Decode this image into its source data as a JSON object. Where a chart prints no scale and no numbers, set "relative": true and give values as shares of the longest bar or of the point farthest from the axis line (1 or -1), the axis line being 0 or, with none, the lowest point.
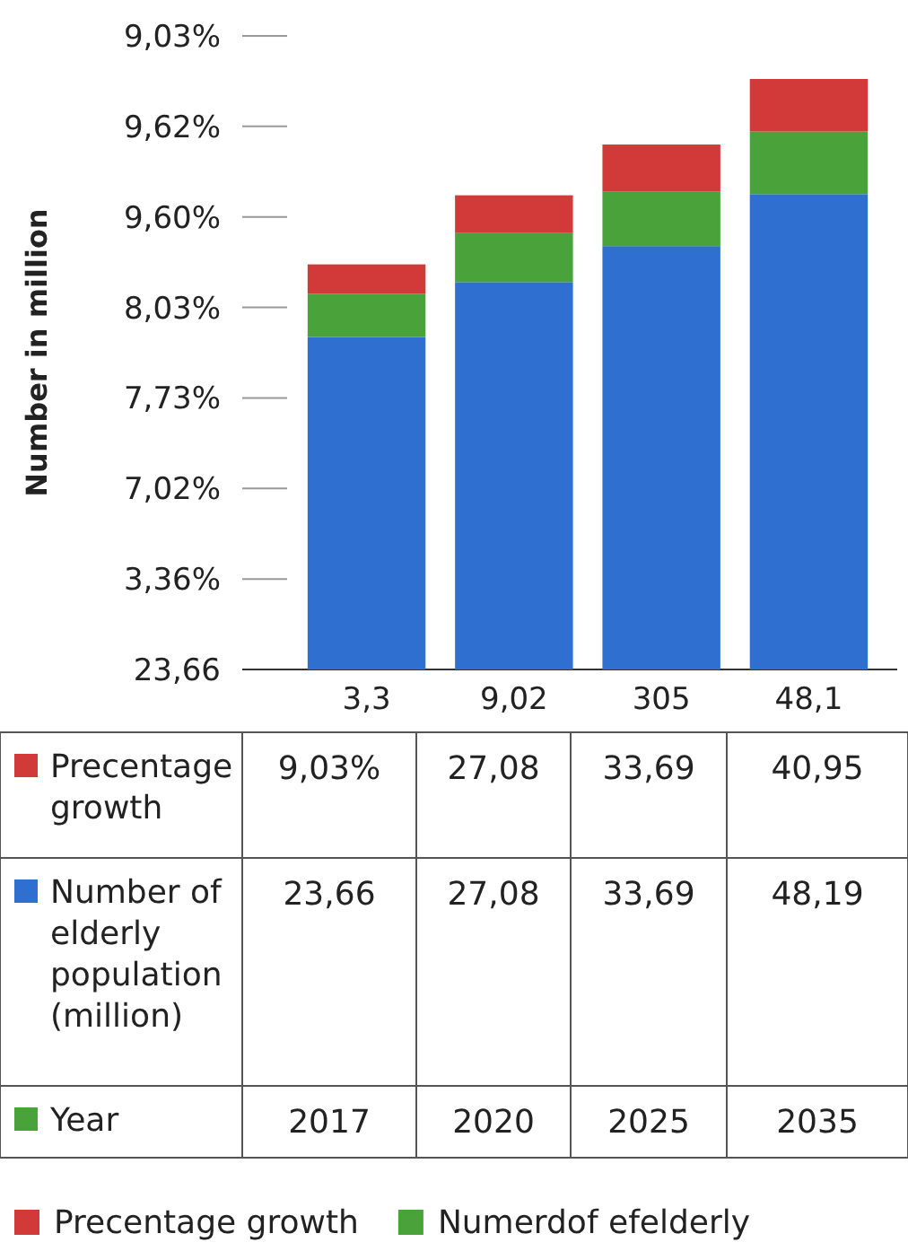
{
  "chart_data": {
    "type": "bar",
    "stacked": true,
    "relative": true,
    "categories": [
      "3,3",
      "9,02",
      "305",
      "48,1"
    ],
    "series": [
      {
        "color": "#2f6fd0",
        "values": [
          0.563,
          0.656,
          0.717,
          0.805
        ]
      },
      {
        "name": "Numerdof efelderly",
        "color": "#4aa23a",
        "values": [
          0.073,
          0.083,
          0.092,
          0.106
        ]
      },
      {
        "name": "Precentage growth",
        "color": "#d23a3a",
        "values": [
          0.05,
          0.064,
          0.08,
          0.089
        ]
      }
    ],
    "legend": "bottom",
    "annotations": [
      "Number in million",
      "23,66",
      "3,36%",
      "7,02%",
      "7,73%",
      "8,03%",
      "9,60%",
      "9,62%",
      "9,03%",
      "Precentage growth",
      "9,03%",
      "27,08",
      "33,69",
      "40,95",
      "Number of elderly population (million)",
      "23,66",
      "27,08",
      "33,69",
      "48,19",
      "Year",
      "2017",
      "2020",
      "2025",
      "2035"
    ]
  }
}
